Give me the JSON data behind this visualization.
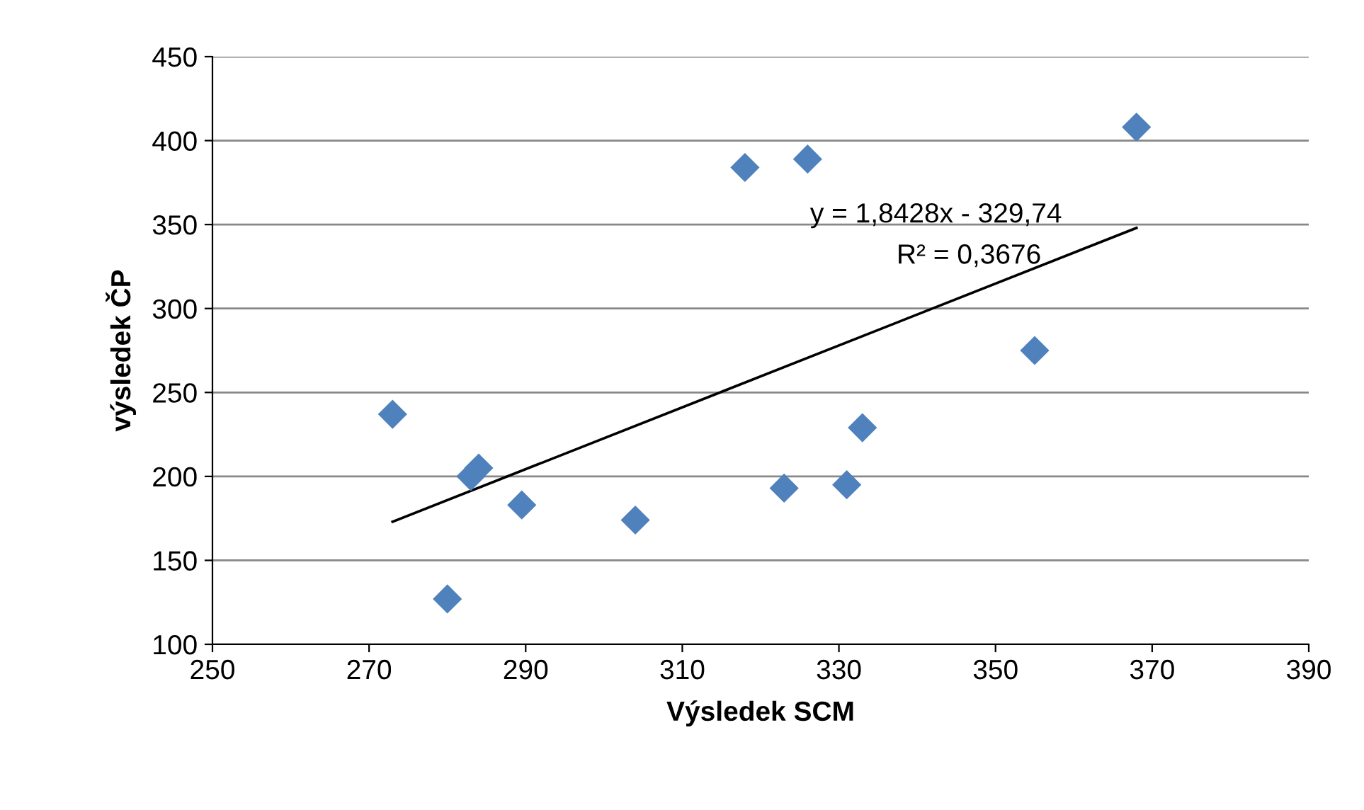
{
  "chart_data": {
    "type": "scatter",
    "xlabel": "Výsledek SCM",
    "ylabel": "výsledek ČP",
    "xlim": [
      250,
      390
    ],
    "xticks": [
      250,
      270,
      290,
      310,
      330,
      350,
      370,
      390
    ],
    "ylim": [
      100,
      450
    ],
    "yticks": [
      100,
      150,
      200,
      250,
      300,
      350,
      400,
      450
    ],
    "grid": "y",
    "legend": false,
    "marker": "diamond",
    "series": [
      {
        "type": "scatter",
        "color": "#4f81bd",
        "x": [
          273,
          280,
          283,
          284,
          289.5,
          304,
          318,
          326,
          323,
          331,
          333,
          355,
          368
        ],
        "values": [
          237,
          127,
          200,
          205,
          183,
          174,
          384,
          389,
          193,
          195,
          229,
          275,
          408
        ]
      },
      {
        "type": "line",
        "color": "#000000",
        "marker": "none",
        "line_style": "solid",
        "x": [
          273,
          368
        ],
        "values": [
          173,
          348
        ]
      }
    ],
    "annotations": [
      "y = 1,8428x - 329,74",
      "R² = 0,3676"
    ]
  }
}
